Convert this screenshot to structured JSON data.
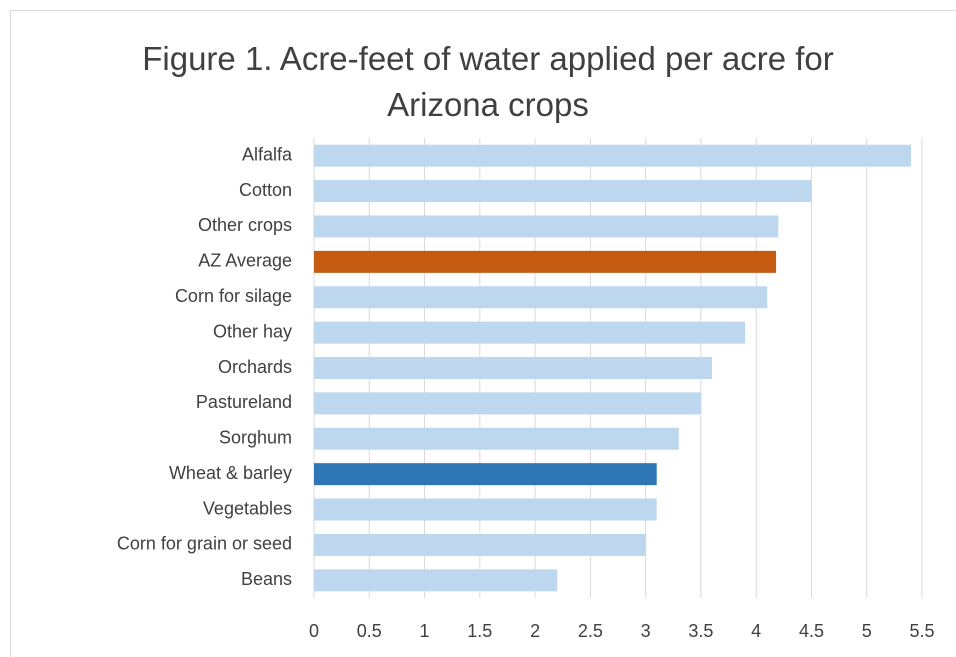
{
  "chart_data": {
    "type": "barh",
    "title": "Figure 1.  Acre-feet of water applied per acre for Arizona crops",
    "categories": [
      "Alfalfa",
      "Cotton",
      "Other crops",
      "AZ Average",
      "Corn for silage",
      "Other hay",
      "Orchards",
      "Pastureland",
      "Sorghum",
      "Wheat & barley",
      "Vegetables",
      "Corn for grain or seed",
      "Beans"
    ],
    "values": [
      5.4,
      4.5,
      4.2,
      4.18,
      4.1,
      3.9,
      3.6,
      3.5,
      3.3,
      3.1,
      3.1,
      3.0,
      2.2
    ],
    "colors": [
      "#bdd7ee",
      "#bdd7ee",
      "#bdd7ee",
      "#c55a11",
      "#bdd7ee",
      "#bdd7ee",
      "#bdd7ee",
      "#bdd7ee",
      "#bdd7ee",
      "#2e75b6",
      "#bdd7ee",
      "#bdd7ee",
      "#bdd7ee"
    ],
    "xlim": [
      0,
      5.5
    ],
    "xticks": [
      0,
      0.5,
      1,
      1.5,
      2,
      2.5,
      3,
      3.5,
      4,
      4.5,
      5,
      5.5
    ],
    "grid": true
  }
}
